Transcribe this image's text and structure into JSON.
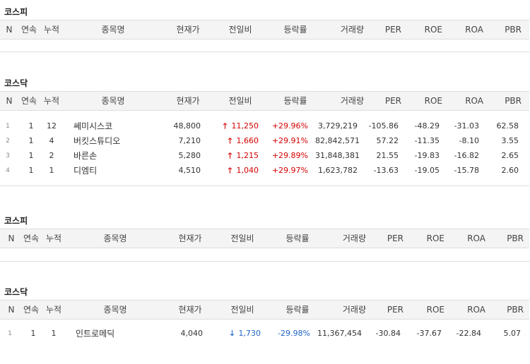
{
  "columns": [
    "N",
    "연속",
    "누적",
    "종목명",
    "현재가",
    "전일비",
    "등락률",
    "거래량",
    "PER",
    "ROE",
    "ROA",
    "PBR"
  ],
  "sections": [
    {
      "title": "코스피",
      "rows": []
    },
    {
      "title": "코스닥",
      "rows": [
        {
          "n": "1",
          "streak": "1",
          "cum": "12",
          "name": "쎄미시스코",
          "price": "48,800",
          "change": "11,250",
          "dir": "up",
          "rate": "+29.96%",
          "volume": "3,729,219",
          "per": "-105.86",
          "roe": "-48.29",
          "roa": "-31.03",
          "pbr": "62.58"
        },
        {
          "n": "2",
          "streak": "1",
          "cum": "4",
          "name": "버킷스튜디오",
          "price": "7,210",
          "change": "1,660",
          "dir": "up",
          "rate": "+29.91%",
          "volume": "82,842,571",
          "per": "57.22",
          "roe": "-11.35",
          "roa": "-8.10",
          "pbr": "3.55"
        },
        {
          "n": "3",
          "streak": "1",
          "cum": "2",
          "name": "바른손",
          "price": "5,280",
          "change": "1,215",
          "dir": "up",
          "rate": "+29.89%",
          "volume": "31,848,381",
          "per": "21.55",
          "roe": "-19.83",
          "roa": "-16.82",
          "pbr": "2.65"
        },
        {
          "n": "4",
          "streak": "1",
          "cum": "1",
          "name": "디엠티",
          "price": "4,510",
          "change": "1,040",
          "dir": "up",
          "rate": "+29.97%",
          "volume": "1,623,782",
          "per": "-13.63",
          "roe": "-19.05",
          "roa": "-15.78",
          "pbr": "2.60"
        }
      ]
    },
    {
      "title": "코스피",
      "rows": []
    },
    {
      "title": "코스닥",
      "rows": [
        {
          "n": "1",
          "streak": "1",
          "cum": "1",
          "name": "인트로메딕",
          "price": "4,040",
          "change": "1,730",
          "dir": "down",
          "rate": "-29.98%",
          "volume": "11,367,454",
          "per": "-30.84",
          "roe": "-37.67",
          "roa": "-22.84",
          "pbr": "5.07"
        }
      ]
    }
  ],
  "colors": {
    "up": "#d50000",
    "down": "#1e64c8"
  },
  "icons": {
    "up": "up-arrow-icon",
    "down": "down-arrow-icon"
  }
}
